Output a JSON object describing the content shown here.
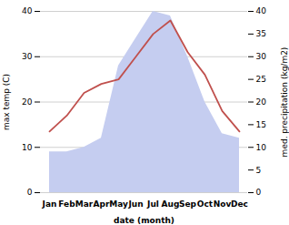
{
  "chart_data": {
    "type": "line",
    "categories": [
      "Jan",
      "Feb",
      "Mar",
      "Apr",
      "May",
      "Jun",
      "Jul",
      "Aug",
      "Sep",
      "Oct",
      "Nov",
      "Dec"
    ],
    "series": [
      {
        "type": "area",
        "color": "#c5cdf0",
        "axis": "y2",
        "values": [
          9.0,
          9.0,
          10.0,
          12.0,
          28.0,
          34.0,
          40.0,
          39.0,
          30.0,
          20.0,
          13.0,
          12.0
        ]
      },
      {
        "type": "line",
        "color": "#c0504d",
        "values": [
          13.5,
          17.0,
          22.0,
          24.0,
          25.0,
          30.0,
          35.0,
          38.0,
          31.0,
          26.0,
          18.0,
          13.5
        ]
      }
    ],
    "xlabel": "date (month)",
    "ylabel": "max temp (C)",
    "y2label": "med. precipitation (kg/m2)",
    "ylim": [
      0,
      40
    ],
    "yticks": [
      0,
      10,
      20,
      30,
      40
    ],
    "y2lim": [
      0,
      40
    ],
    "y2ticks": [
      0,
      5,
      10,
      15,
      20,
      25,
      30,
      35,
      40
    ],
    "grid": true
  }
}
